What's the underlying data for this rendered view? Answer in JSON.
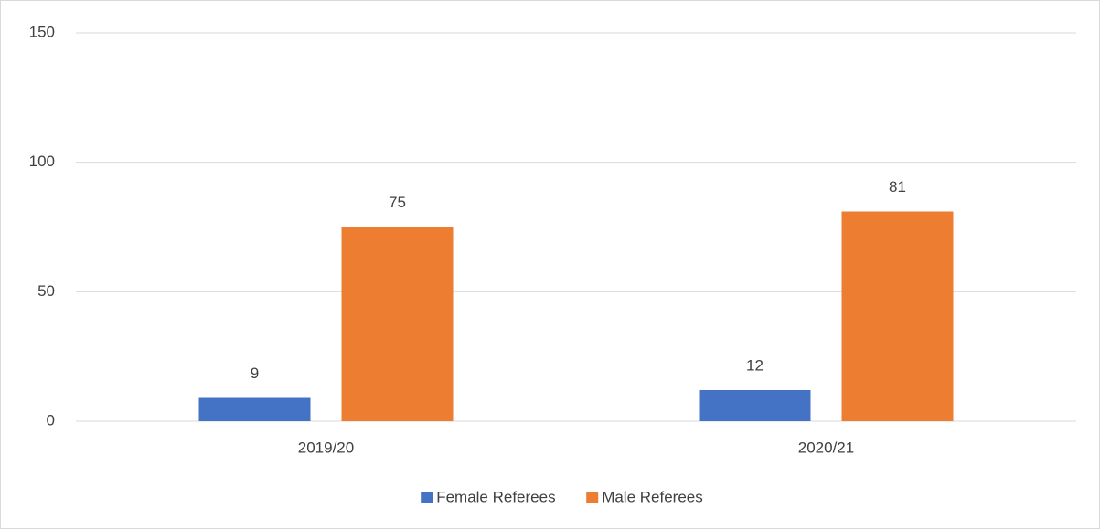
{
  "chart_data": {
    "type": "bar",
    "categories": [
      "2019/20",
      "2020/21"
    ],
    "series": [
      {
        "name": "Female Referees",
        "color": "#4472c4",
        "values": [
          9,
          12
        ]
      },
      {
        "name": "Male Referees",
        "color": "#ed7d31",
        "values": [
          75,
          81
        ]
      }
    ],
    "ylim": [
      0,
      150
    ],
    "yticks": [
      0,
      50,
      100,
      150
    ],
    "grid": true,
    "legend": "bottom"
  }
}
